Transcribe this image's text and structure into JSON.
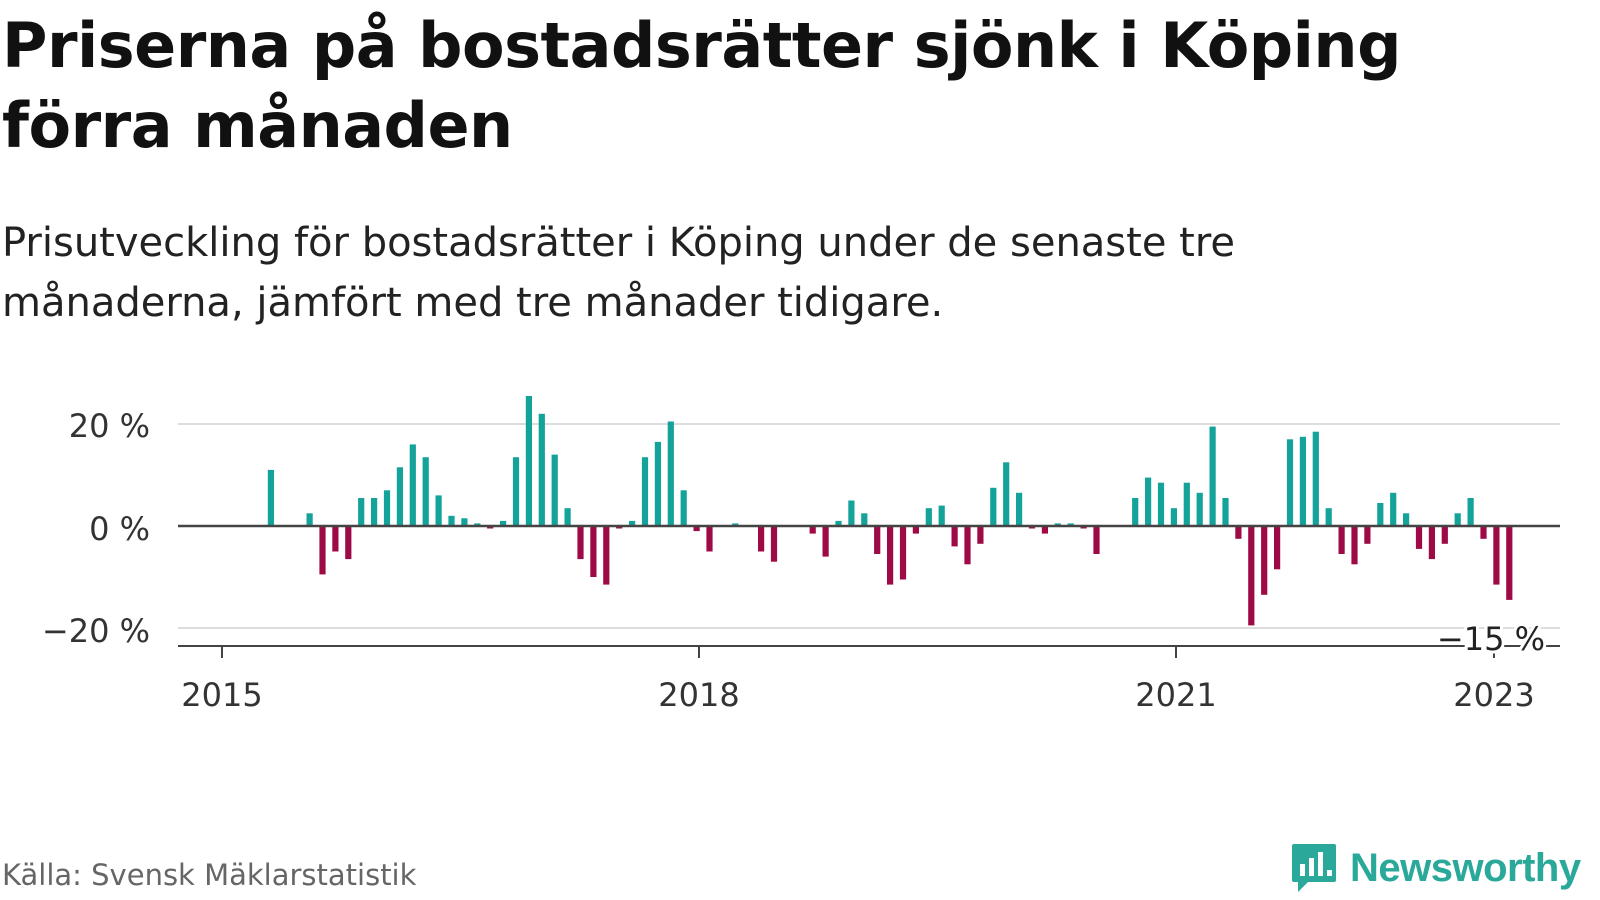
{
  "title": "Priserna på bostadsrätter sjönk i Köping förra månaden",
  "subtitle": "Prisutveckling för bostadsrätter i Köping under de senaste tre månaderna, jämfört med tre månader tidigare.",
  "source": "Källa: Svensk Mäklarstatistik",
  "brand": "Newsworthy",
  "colors": {
    "positive": "#13a39a",
    "negative": "#9e0a45",
    "axis": "#444444",
    "grid": "#dddddd",
    "brand": "#2aa89a"
  },
  "chart_data": {
    "type": "bar",
    "ylim": [
      -23,
      28
    ],
    "y_ticks": [
      20,
      0,
      -20
    ],
    "y_tick_labels": [
      "20 %",
      "0 %",
      "−20 %"
    ],
    "x_ticks": [
      "2015",
      "2018",
      "2021",
      "2023"
    ],
    "annotation": "−15 %",
    "grid": true,
    "series": [
      {
        "values": [
          0,
          0,
          11,
          0,
          0,
          2.5,
          -9.5,
          -5,
          -6.5,
          5.5,
          5.5,
          7,
          11.5,
          16,
          13.5,
          6,
          2,
          1.5,
          0.5,
          -0.5,
          1,
          13.5,
          25.5,
          22,
          14,
          3.5,
          -6.5,
          -10,
          -11.5,
          -0.5,
          1,
          13.5,
          16.5,
          20.5,
          7,
          -1,
          -5,
          0,
          0.5,
          0,
          -5,
          -7,
          0,
          0,
          -1.5,
          -6,
          1,
          5,
          2.5,
          -5.5,
          -11.5,
          -10.5,
          -1.5,
          3.5,
          4,
          -4,
          -7.5,
          -3.5,
          7.5,
          12.5,
          6.5,
          -0.5,
          -1.5,
          0.5,
          0.5,
          -0.5,
          -5.5,
          0,
          0,
          5.5,
          9.5,
          8.5,
          3.5,
          8.5,
          6.5,
          19.5,
          5.5,
          -2.5,
          -19.5,
          -13.5,
          -8.5,
          17,
          17.5,
          18.5,
          3.5,
          -5.5,
          -7.5,
          -3.5,
          4.5,
          6.5,
          2.5,
          -4.5,
          -6.5,
          -3.5,
          2.5,
          5.5,
          -2.5,
          -11.5,
          -14.5
        ]
      }
    ]
  }
}
